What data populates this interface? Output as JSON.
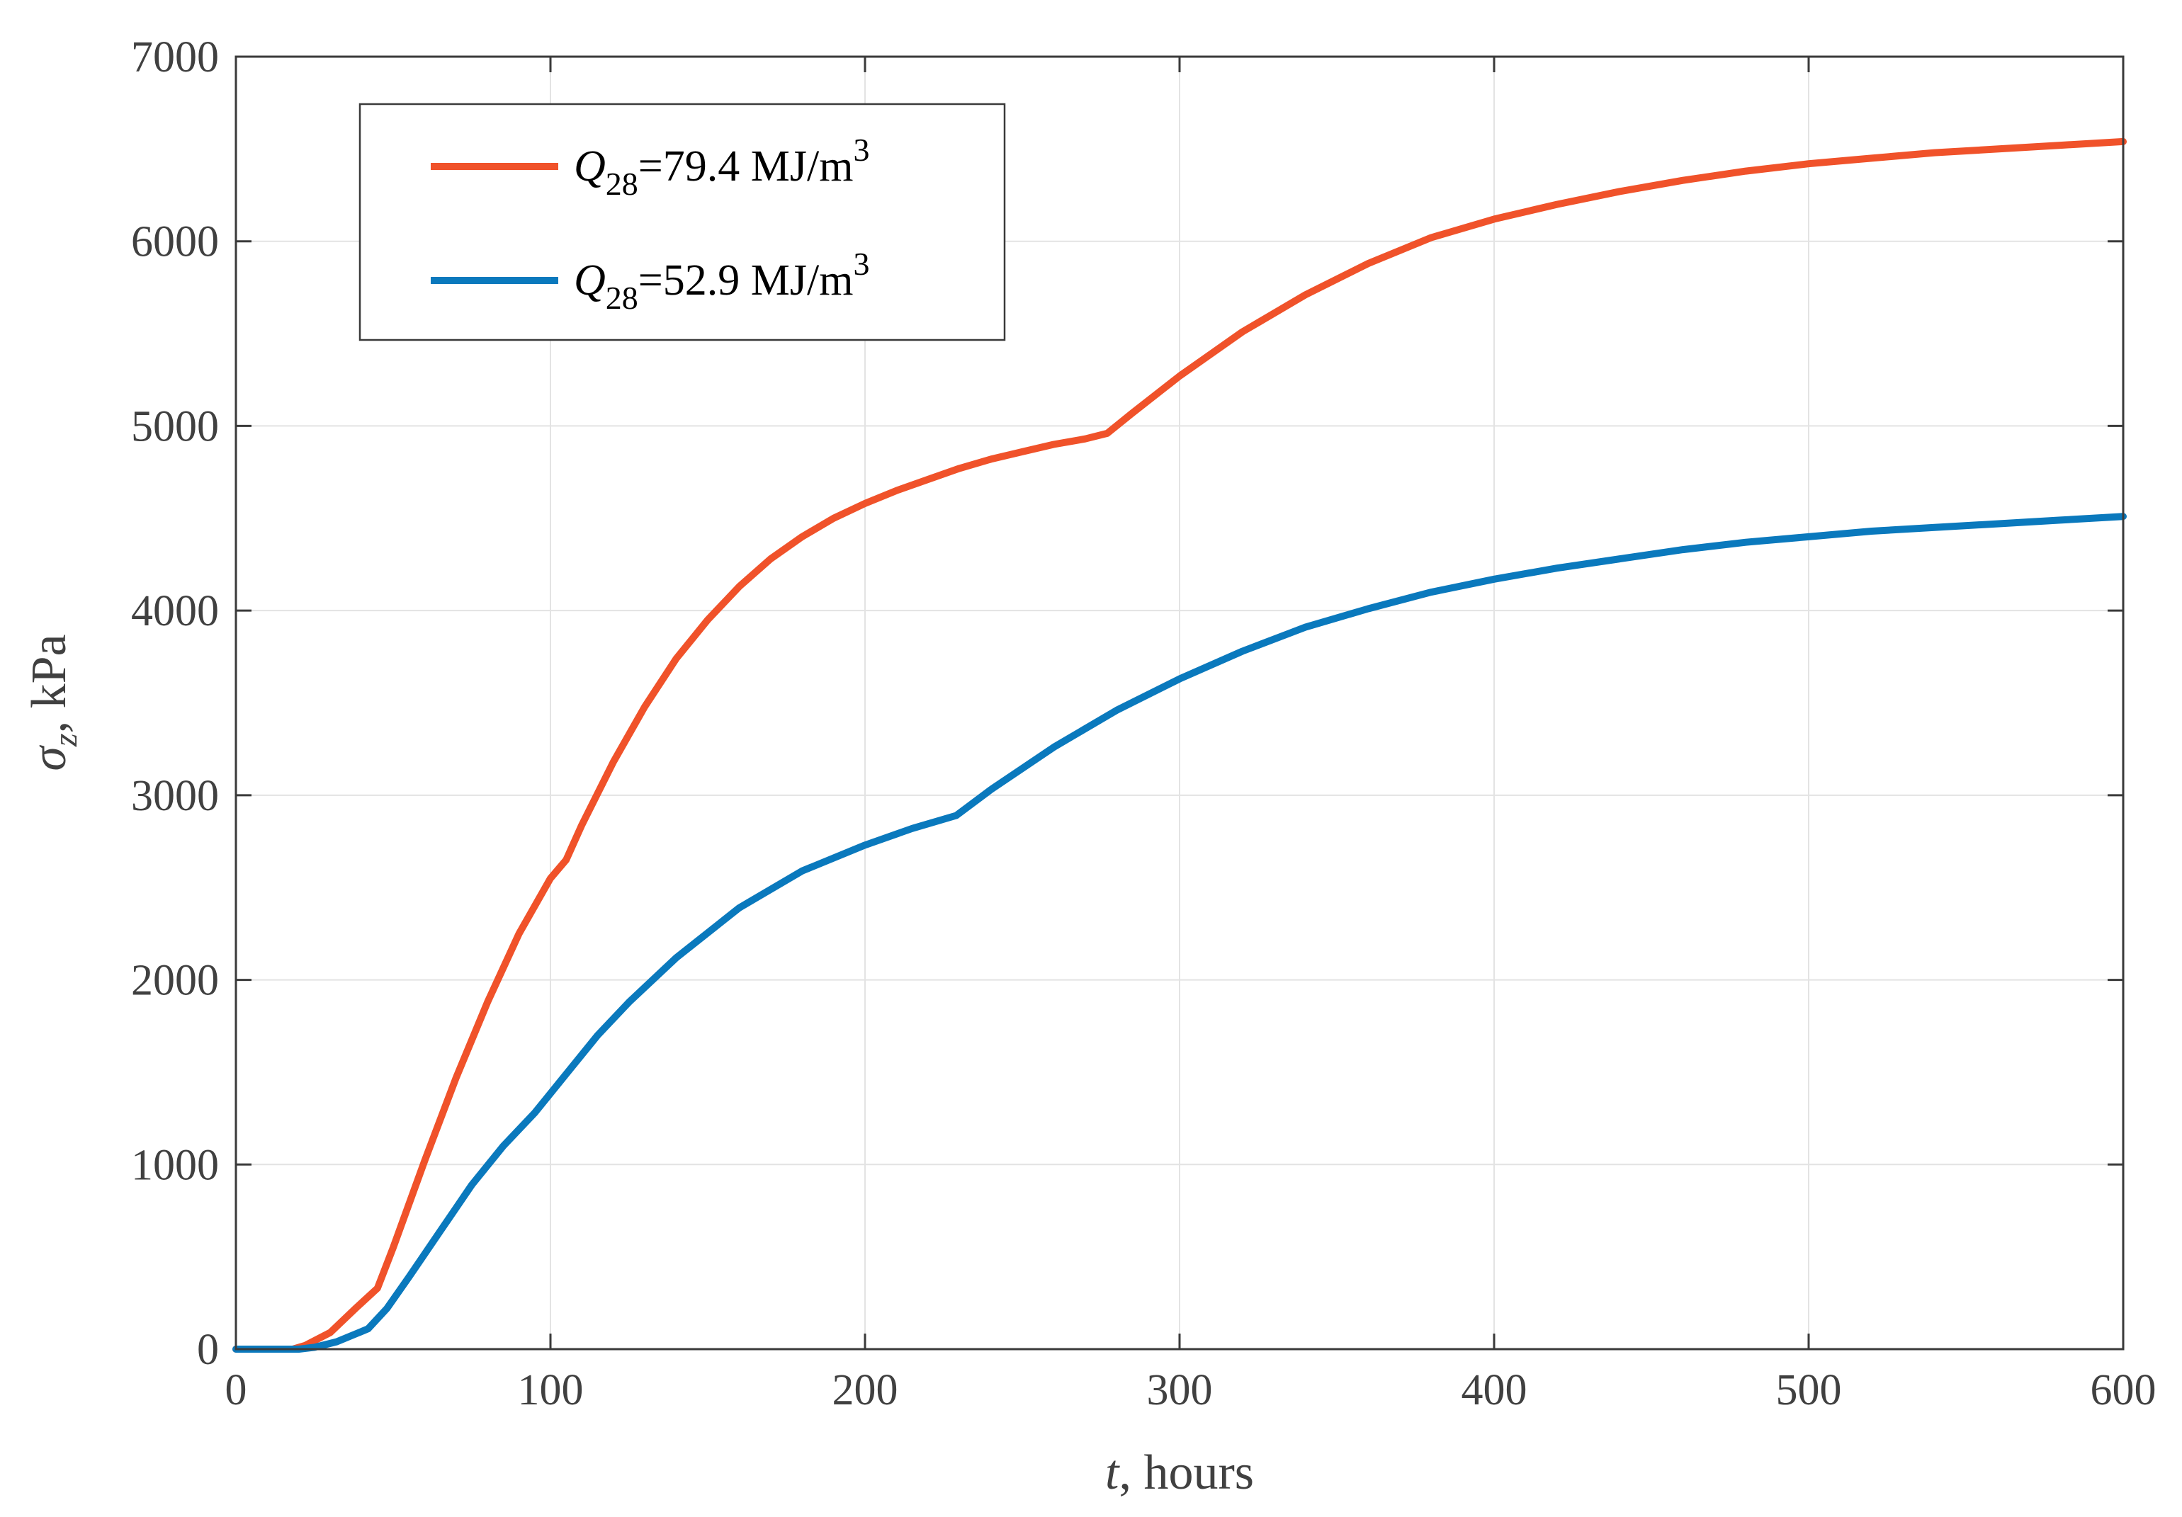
{
  "chart_data": {
    "type": "line",
    "title": "",
    "xlabel": {
      "var": "t",
      "rest": ", hours"
    },
    "ylabel": {
      "sym": "σ",
      "sub": "z",
      "rest": ", kPa"
    },
    "xlim": [
      0,
      600
    ],
    "ylim": [
      0,
      7000
    ],
    "grid": true,
    "legend_position": "top-left",
    "xticks": [
      0,
      100,
      200,
      300,
      400,
      500,
      600
    ],
    "xtick_labels": [
      "0",
      "100",
      "200",
      "300",
      "400",
      "500",
      "600"
    ],
    "yticks": [
      0,
      1000,
      2000,
      3000,
      4000,
      5000,
      6000,
      7000
    ],
    "ytick_labels": [
      "0",
      "1000",
      "2000",
      "3000",
      "4000",
      "5000",
      "6000",
      "7000"
    ],
    "series": [
      {
        "name": "Q28=79.4 MJ/m3",
        "legend": {
          "var": "Q",
          "sub": "28",
          "mid": "=79.4 MJ/m",
          "sup": "3"
        },
        "color": "#f0522a",
        "x": [
          0,
          10,
          18,
          22,
          30,
          38,
          45,
          50,
          60,
          70,
          80,
          90,
          100,
          105,
          110,
          120,
          130,
          140,
          150,
          160,
          170,
          180,
          190,
          200,
          210,
          220,
          230,
          240,
          250,
          260,
          270,
          277,
          285,
          300,
          320,
          340,
          360,
          380,
          400,
          420,
          440,
          460,
          480,
          500,
          520,
          540,
          560,
          580,
          600
        ],
        "y": [
          0,
          0,
          0,
          20,
          90,
          220,
          330,
          550,
          1020,
          1470,
          1880,
          2250,
          2550,
          2650,
          2840,
          3180,
          3480,
          3740,
          3950,
          4130,
          4280,
          4400,
          4500,
          4580,
          4650,
          4710,
          4770,
          4820,
          4860,
          4900,
          4930,
          4960,
          5070,
          5270,
          5510,
          5710,
          5880,
          6020,
          6120,
          6200,
          6270,
          6330,
          6380,
          6420,
          6450,
          6480,
          6500,
          6520,
          6540
        ]
      },
      {
        "name": "Q28=52.9 MJ/m3",
        "legend": {
          "var": "Q",
          "sub": "28",
          "mid": "=52.9 MJ/m",
          "sup": "3"
        },
        "color": "#0a79bd",
        "x": [
          0,
          10,
          20,
          25,
          32,
          42,
          48,
          55,
          65,
          75,
          85,
          95,
          105,
          115,
          125,
          140,
          160,
          180,
          200,
          215,
          229,
          240,
          260,
          280,
          300,
          320,
          340,
          360,
          380,
          400,
          420,
          440,
          460,
          480,
          500,
          520,
          540,
          560,
          580,
          600
        ],
        "y": [
          0,
          0,
          0,
          10,
          40,
          110,
          220,
          390,
          640,
          890,
          1100,
          1280,
          1490,
          1700,
          1880,
          2120,
          2390,
          2590,
          2730,
          2820,
          2890,
          3030,
          3260,
          3460,
          3630,
          3780,
          3910,
          4010,
          4100,
          4170,
          4230,
          4280,
          4330,
          4370,
          4400,
          4430,
          4450,
          4470,
          4490,
          4510
        ]
      }
    ]
  }
}
